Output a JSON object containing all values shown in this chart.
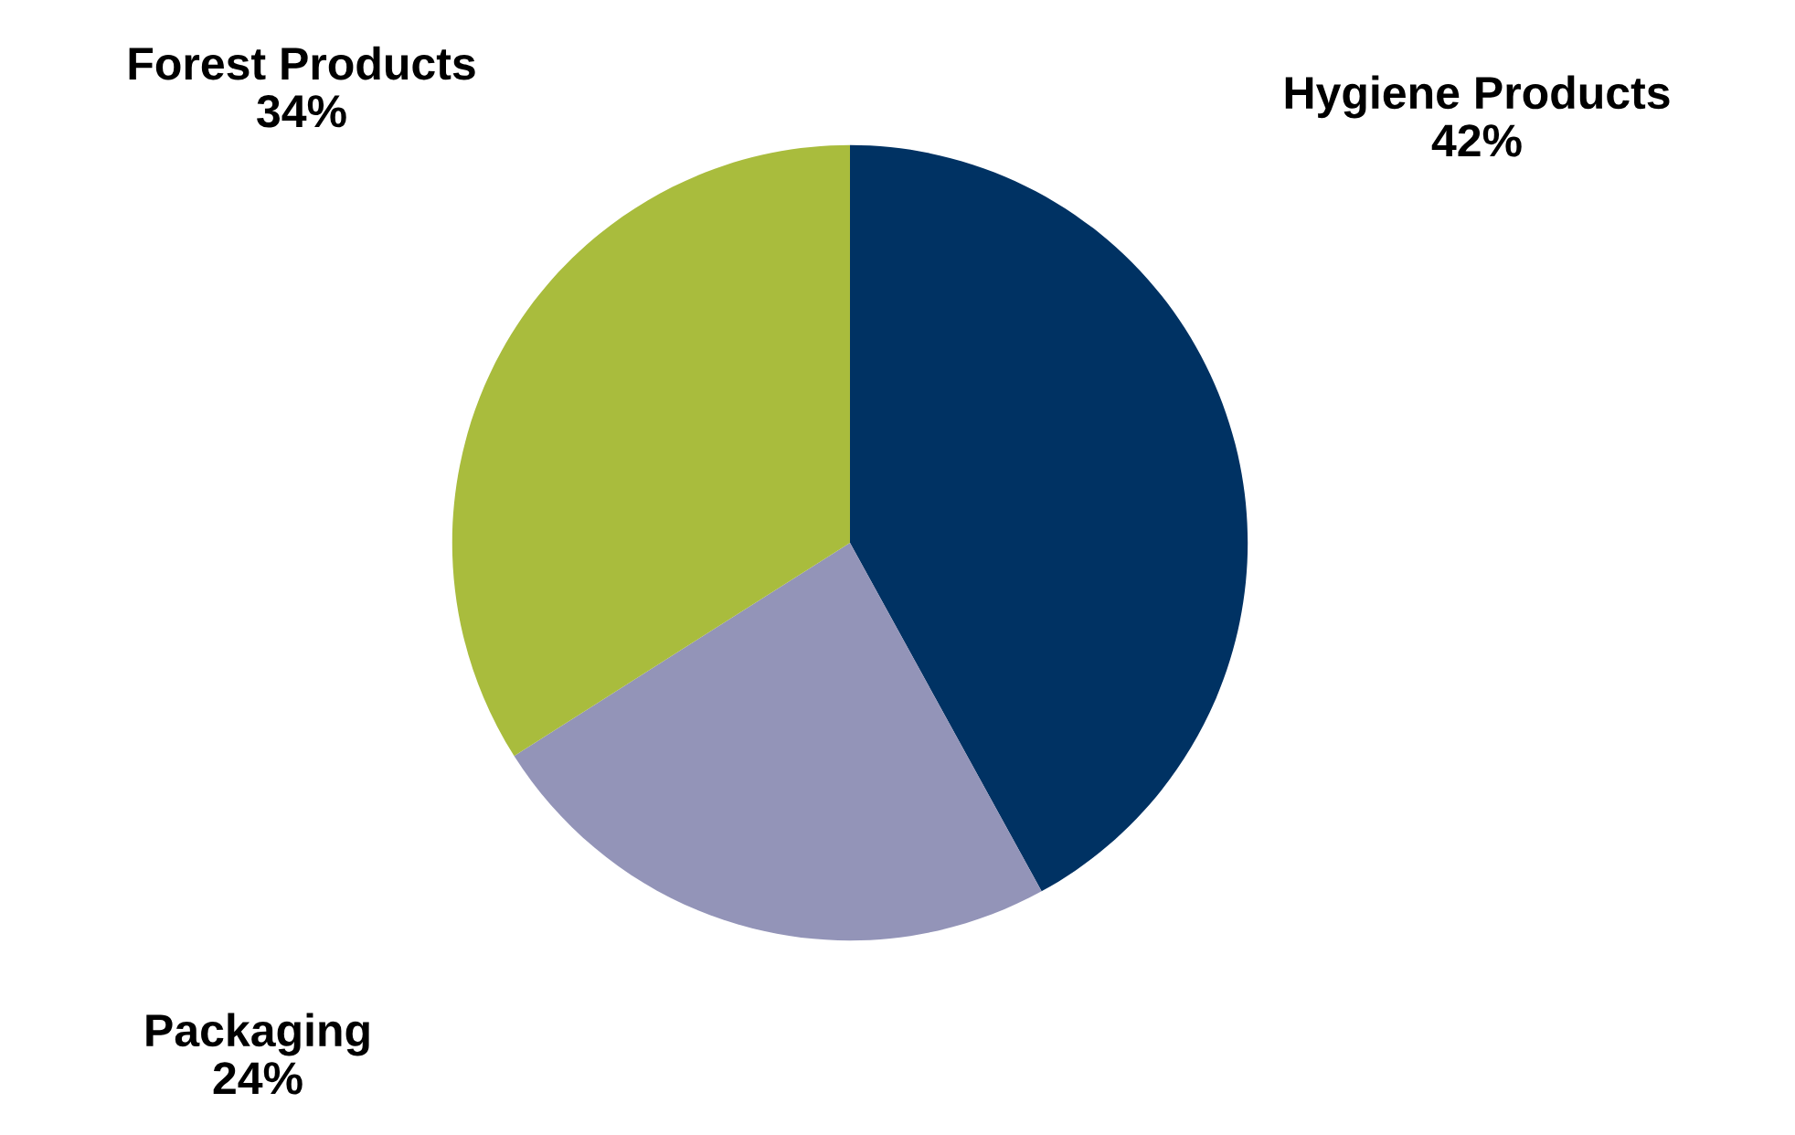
{
  "chart_data": {
    "type": "pie",
    "categories": [
      "Hygiene Products",
      "Packaging",
      "Forest Products"
    ],
    "values": [
      42,
      24,
      34
    ],
    "value_labels": [
      "42%",
      "24%",
      "34%"
    ],
    "colors": [
      "#003263",
      "#9394b8",
      "#a9bc3d"
    ],
    "legend": false
  }
}
